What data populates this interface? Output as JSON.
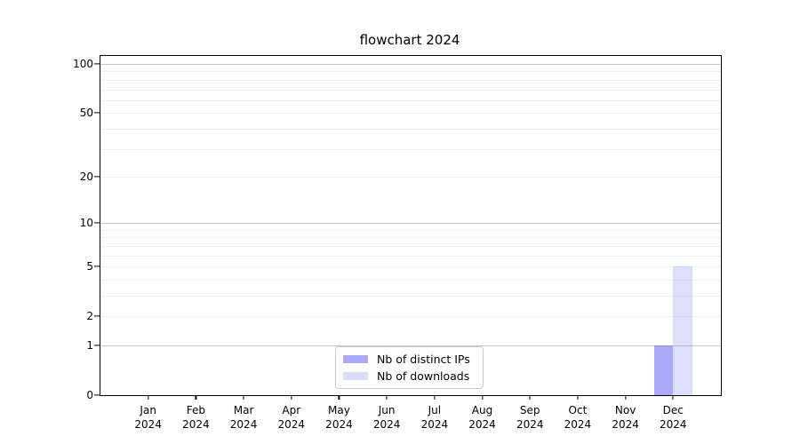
{
  "title": "flowchart 2024",
  "colors": {
    "background": "#ffffff",
    "spine": "#000000",
    "text": "#000000",
    "grid_major": "#c8c8c8",
    "grid_minor": "#efefef",
    "legend_border": "#cccccc",
    "bar_distinct_ips": "#aaaaf8",
    "bar_downloads": "#dcdcf9"
  },
  "chart_data": {
    "type": "bar",
    "title": "flowchart 2024",
    "categories": [
      "Jan 2024",
      "Feb 2024",
      "Mar 2024",
      "Apr 2024",
      "May 2024",
      "Jun 2024",
      "Jul 2024",
      "Aug 2024",
      "Sep 2024",
      "Oct 2024",
      "Nov 2024",
      "Dec 2024"
    ],
    "series": [
      {
        "name": "Nb of distinct IPs",
        "values": [
          0,
          0,
          0,
          0,
          0,
          0,
          0,
          0,
          0,
          0,
          0,
          1
        ],
        "swatch_color": "#aaaaf8",
        "fill": "rgba(85,85,240,0.5)"
      },
      {
        "name": "Nb of downloads",
        "values": [
          0,
          0,
          0,
          0,
          0,
          0,
          0,
          0,
          0,
          0,
          0,
          5
        ],
        "swatch_color": "#dcdcf9",
        "fill": "rgba(85,85,240,0.2)"
      }
    ],
    "y_axis": {
      "scale": "log1p",
      "min": 0,
      "max": 112,
      "tick_values": [
        0,
        1,
        2,
        5,
        10,
        20,
        50,
        100
      ],
      "tick_labels": [
        "0",
        "1",
        "2",
        "5",
        "10",
        "20",
        "50",
        "100"
      ],
      "major_grid_values": [
        1,
        10,
        100
      ],
      "minor_grid_values": [
        2,
        3,
        4,
        5,
        6,
        7,
        8,
        9,
        20,
        30,
        40,
        50,
        60,
        70,
        80,
        90
      ]
    },
    "x_axis": {
      "tick_labels_line1": [
        "Jan",
        "Feb",
        "Mar",
        "Apr",
        "May",
        "Jun",
        "Jul",
        "Aug",
        "Sep",
        "Oct",
        "Nov",
        "Dec"
      ],
      "tick_labels_line2": "2024"
    },
    "legend": {
      "position": "lower center",
      "entries": [
        "Nb of distinct IPs",
        "Nb of downloads"
      ]
    },
    "grid": true
  }
}
